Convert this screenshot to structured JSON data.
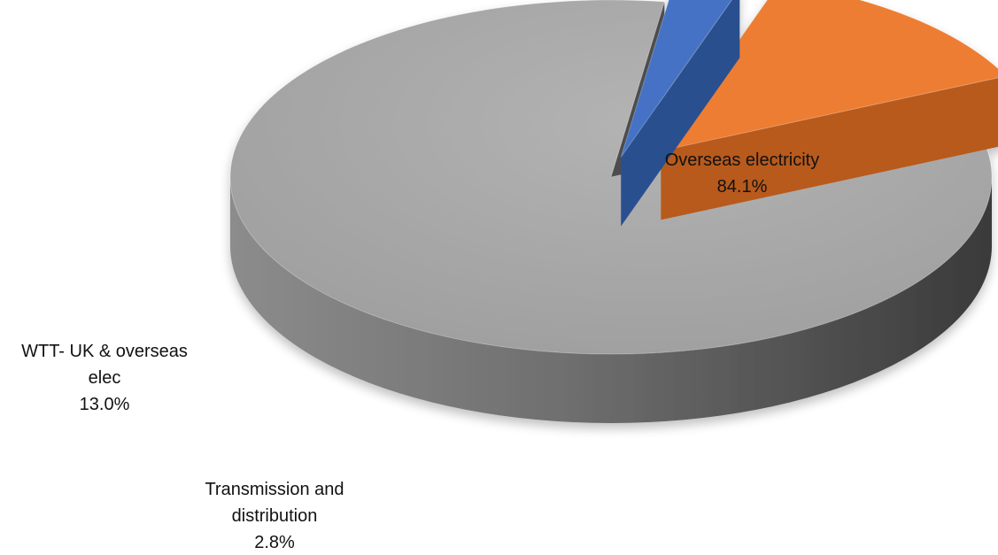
{
  "chart_data": {
    "type": "pie",
    "style": "3d-exploded",
    "title": "",
    "legend": "none",
    "slices": [
      {
        "name": "Overseas electricity",
        "label_lines": [
          "Overseas electricity"
        ],
        "value": 84.1,
        "display_value": "84.1%",
        "color": "#a6a6a6"
      },
      {
        "name": "Transmission and distribution",
        "label_lines": [
          "Transmission and",
          "distribution"
        ],
        "value": 2.8,
        "display_value": "2.8%",
        "color": "#4472c4"
      },
      {
        "name": "WTT- UK & overseas elec",
        "label_lines": [
          "WTT- UK & overseas",
          "elec"
        ],
        "value": 13.0,
        "display_value": "13.0%",
        "color": "#ed7d31"
      }
    ]
  }
}
